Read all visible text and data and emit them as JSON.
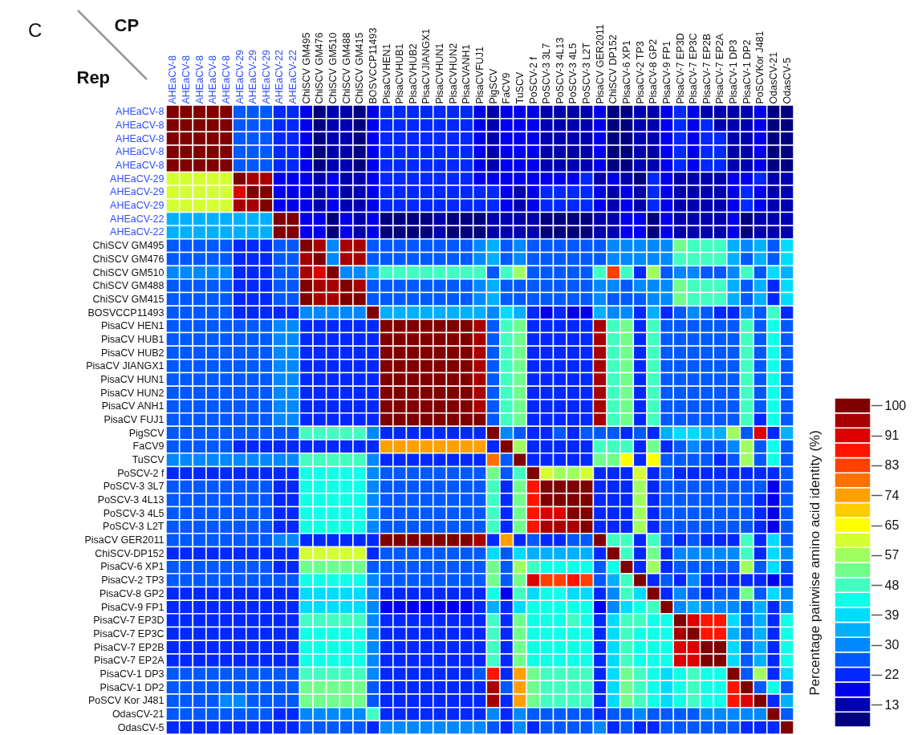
{
  "chart_data": {
    "type": "heatmap",
    "title": "C",
    "xlabel": "CP",
    "ylabel": "Rep",
    "clabel": "Percentage pairwise amino acid identity (%)",
    "categories": [
      "AHEaCV-8",
      "AHEaCV-8",
      "AHEaCV-8",
      "AHEaCV-8",
      "AHEaCV-8",
      "AHEaCV-29",
      "AHEaCV-29",
      "AHEaCV-29",
      "AHEaCV-22",
      "AHEaCV-22",
      "ChiSCV GM495",
      "ChiSCV GM476",
      "ChiSCV GM510",
      "ChiSCV GM488",
      "ChiSCV GM415",
      "BOSVCCP11493",
      "PisaCVHEN1",
      "PisaCVHUB1",
      "PisaCVHUB2",
      "PisaCVJIANGX1",
      "PisaCVHUN1",
      "PisaCVHUN2",
      "PisaCVANH1",
      "PisaCVFUJ1",
      "PigSCV",
      "FaCV9",
      "TuSCV",
      "PoSCV-2 f",
      "PoSCV-3 3L7",
      "PoSCV-3 4L13",
      "PoSCV-3 4L5",
      "PoSCV-3 L2T",
      "PisaCV GER2011",
      "ChiSCV DP152",
      "PisaCV-6 XP1",
      "PisaCV-2 TP3",
      "PisaCV-8 GP2",
      "PisaCV-9 FP1",
      "PisaCV-7 EP3D",
      "PisaCV-7 EP3C",
      "PisaCV-7 EP2B",
      "PisaCV-7 EP2A",
      "PisaCV-1 DP3",
      "PisaCV-1 DP2",
      "PoSCVKor J481",
      "OdasCV-21",
      "OdasCV-5"
    ],
    "y_categories": [
      "AHEaCV-8",
      "AHEaCV-8",
      "AHEaCV-8",
      "AHEaCV-8",
      "AHEaCV-8",
      "AHEaCV-29",
      "AHEaCV-29",
      "AHEaCV-29",
      "AHEaCV-22",
      "AHEaCV-22",
      "ChiSCV GM495",
      "ChiSCV GM476",
      "ChiSCV GM510",
      "ChiSCV GM488",
      "ChiSCV GM415",
      "BOSVCCP11493",
      "PisaCV HEN1",
      "PisaCV HUB1",
      "PisaCV HUB2",
      "PisaCV JIANGX1",
      "PisaCV HUN1",
      "PisaCV HUN2",
      "PisaCV ANH1",
      "PisaCV FUJ1",
      "PigSCV",
      "FaCV9",
      "TuSCV",
      "PoSCV-2 f",
      "PoSCV-3 3L7",
      "PoSCV-3 4L13",
      "PoSCV-3 4L5",
      "PoSCV-3 L2T",
      "PisaCV GER2011",
      "ChiSCV-DP152",
      "PisaCV-6 XP1",
      "PisaCV-2 TP3",
      "PisaCV-8 GP2",
      "PisaCV-9 FP1",
      "PisaCV-7 EP3D",
      "PisaCV-7 EP3C",
      "PisaCV-7 EP2B",
      "PisaCV-7 EP2A",
      "PisaCV-1 DP3",
      "PisaCV-1 DP2",
      "PoSCV Kor J481",
      "OdasCV-21",
      "OdasCV-5"
    ],
    "clim": [
      6.5,
      102.2
    ],
    "cticks": [
      100,
      {
        "value": 91.3,
        "label": "91"
      },
      {
        "value": 82.6,
        "label": "83"
      },
      {
        "value": 73.9,
        "label": "74"
      },
      {
        "value": 65.2,
        "label": "65"
      },
      {
        "value": 56.5,
        "label": "57"
      },
      {
        "value": 47.8,
        "label": "48"
      },
      {
        "value": 39.1,
        "label": "39"
      },
      {
        "value": 30.4,
        "label": "30"
      },
      {
        "value": 21.7,
        "label": "22"
      },
      13
    ],
    "cells": [
      [
        100,
        100,
        100,
        100,
        100,
        26,
        26,
        26,
        22,
        22,
        17,
        9,
        13,
        13,
        9,
        17,
        22,
        22,
        22,
        22,
        22,
        22,
        22,
        17,
        13,
        17,
        17,
        17,
        13,
        13,
        13,
        13,
        17,
        9,
        9,
        13,
        13,
        17,
        22,
        17,
        13,
        13,
        13,
        13,
        17,
        9,
        9
      ],
      [
        100,
        100,
        100,
        100,
        100,
        26,
        26,
        26,
        22,
        22,
        17,
        9,
        13,
        13,
        9,
        17,
        22,
        22,
        22,
        22,
        22,
        22,
        22,
        17,
        13,
        17,
        17,
        17,
        13,
        13,
        13,
        13,
        17,
        9,
        9,
        13,
        13,
        17,
        22,
        17,
        22,
        13,
        13,
        13,
        17,
        9,
        9
      ],
      [
        100,
        100,
        100,
        100,
        100,
        26,
        26,
        26,
        22,
        22,
        17,
        9,
        13,
        13,
        9,
        17,
        22,
        22,
        22,
        22,
        22,
        22,
        22,
        17,
        13,
        17,
        17,
        17,
        13,
        13,
        13,
        13,
        17,
        9,
        9,
        13,
        13,
        17,
        22,
        17,
        22,
        22,
        13,
        13,
        17,
        9,
        9
      ],
      [
        100,
        100,
        100,
        100,
        100,
        26,
        26,
        26,
        22,
        22,
        17,
        9,
        13,
        13,
        9,
        17,
        22,
        22,
        22,
        22,
        22,
        22,
        22,
        17,
        13,
        17,
        17,
        17,
        13,
        13,
        13,
        13,
        17,
        9,
        9,
        13,
        13,
        17,
        22,
        17,
        22,
        22,
        13,
        13,
        17,
        9,
        9
      ],
      [
        100,
        100,
        100,
        100,
        100,
        26,
        26,
        26,
        22,
        22,
        17,
        9,
        13,
        13,
        9,
        17,
        22,
        22,
        22,
        22,
        22,
        22,
        22,
        17,
        13,
        17,
        17,
        17,
        13,
        13,
        13,
        13,
        17,
        9,
        9,
        13,
        13,
        17,
        22,
        17,
        22,
        22,
        13,
        13,
        17,
        9,
        9
      ],
      [
        61,
        61,
        61,
        61,
        61,
        100,
        96,
        96,
        17,
        17,
        17,
        13,
        17,
        13,
        13,
        17,
        22,
        22,
        22,
        22,
        22,
        22,
        22,
        17,
        17,
        17,
        17,
        17,
        17,
        17,
        17,
        22,
        13,
        17,
        13,
        9,
        22,
        17,
        13,
        13,
        13,
        13,
        17,
        17,
        22,
        13,
        13
      ],
      [
        61,
        61,
        61,
        61,
        61,
        91,
        100,
        100,
        17,
        17,
        17,
        13,
        17,
        13,
        13,
        17,
        22,
        22,
        22,
        22,
        22,
        22,
        22,
        22,
        22,
        17,
        13,
        17,
        22,
        22,
        22,
        22,
        17,
        13,
        17,
        13,
        22,
        17,
        13,
        13,
        13,
        13,
        17,
        22,
        17,
        13,
        13
      ],
      [
        61,
        61,
        61,
        61,
        61,
        96,
        96,
        100,
        17,
        17,
        17,
        13,
        17,
        13,
        13,
        17,
        22,
        22,
        22,
        22,
        22,
        22,
        22,
        22,
        22,
        17,
        13,
        17,
        22,
        22,
        22,
        22,
        17,
        13,
        17,
        13,
        22,
        17,
        13,
        13,
        13,
        13,
        17,
        22,
        17,
        13,
        13
      ],
      [
        35,
        35,
        35,
        35,
        35,
        35,
        35,
        35,
        100,
        100,
        17,
        17,
        9,
        17,
        13,
        17,
        9,
        9,
        9,
        9,
        13,
        9,
        9,
        9,
        13,
        13,
        13,
        13,
        9,
        9,
        9,
        9,
        13,
        13,
        17,
        17,
        9,
        17,
        13,
        13,
        13,
        13,
        17,
        9,
        13,
        13,
        13
      ],
      [
        35,
        35,
        35,
        35,
        35,
        35,
        35,
        35,
        100,
        100,
        17,
        17,
        9,
        17,
        13,
        17,
        9,
        9,
        9,
        9,
        13,
        9,
        9,
        9,
        13,
        13,
        13,
        13,
        9,
        9,
        9,
        9,
        13,
        13,
        17,
        17,
        9,
        17,
        13,
        13,
        13,
        13,
        17,
        9,
        13,
        13,
        13
      ],
      [
        26,
        26,
        26,
        26,
        26,
        22,
        22,
        22,
        26,
        26,
        100,
        96,
        30,
        96,
        96,
        26,
        26,
        26,
        26,
        26,
        26,
        26,
        26,
        30,
        35,
        26,
        30,
        26,
        26,
        26,
        26,
        26,
        26,
        30,
        30,
        30,
        30,
        30,
        52,
        48,
        48,
        48,
        35,
        30,
        35,
        26,
        39
      ],
      [
        26,
        26,
        26,
        26,
        26,
        22,
        22,
        22,
        26,
        26,
        96,
        100,
        30,
        96,
        96,
        26,
        26,
        26,
        26,
        26,
        26,
        26,
        26,
        30,
        35,
        26,
        30,
        26,
        26,
        26,
        26,
        26,
        26,
        30,
        30,
        30,
        30,
        30,
        48,
        48,
        48,
        48,
        35,
        26,
        35,
        26,
        39
      ],
      [
        30,
        30,
        30,
        30,
        30,
        22,
        22,
        22,
        26,
        26,
        96,
        91,
        100,
        30,
        30,
        35,
        48,
        48,
        48,
        48,
        48,
        48,
        48,
        48,
        26,
        48,
        57,
        26,
        26,
        26,
        26,
        26,
        48,
        83,
        48,
        22,
        57,
        26,
        30,
        30,
        26,
        26,
        30,
        48,
        26,
        39,
        35
      ],
      [
        26,
        26,
        26,
        26,
        26,
        22,
        22,
        22,
        26,
        26,
        100,
        96,
        96,
        100,
        96,
        26,
        26,
        26,
        26,
        26,
        26,
        26,
        26,
        30,
        35,
        26,
        26,
        26,
        26,
        26,
        26,
        26,
        30,
        30,
        26,
        30,
        30,
        30,
        52,
        48,
        48,
        48,
        35,
        26,
        35,
        22,
        39
      ],
      [
        26,
        26,
        26,
        26,
        26,
        22,
        22,
        22,
        26,
        26,
        100,
        96,
        96,
        100,
        100,
        26,
        26,
        26,
        26,
        26,
        26,
        26,
        26,
        30,
        35,
        26,
        26,
        26,
        26,
        26,
        26,
        26,
        30,
        26,
        26,
        26,
        30,
        30,
        52,
        48,
        48,
        48,
        35,
        26,
        35,
        22,
        39
      ],
      [
        26,
        26,
        26,
        26,
        26,
        22,
        22,
        22,
        22,
        22,
        30,
        30,
        30,
        30,
        30,
        100,
        35,
        35,
        35,
        35,
        35,
        35,
        35,
        35,
        30,
        39,
        35,
        22,
        17,
        22,
        17,
        17,
        35,
        30,
        30,
        22,
        35,
        22,
        26,
        30,
        26,
        22,
        22,
        30,
        26,
        48,
        22
      ],
      [
        26,
        26,
        26,
        26,
        26,
        26,
        26,
        26,
        30,
        30,
        22,
        22,
        22,
        22,
        22,
        22,
        100,
        100,
        100,
        100,
        100,
        100,
        100,
        96,
        26,
        48,
        52,
        22,
        22,
        22,
        22,
        22,
        96,
        48,
        52,
        22,
        48,
        26,
        26,
        26,
        26,
        26,
        26,
        48,
        26,
        43,
        26
      ],
      [
        26,
        26,
        26,
        26,
        26,
        26,
        26,
        26,
        30,
        30,
        22,
        22,
        22,
        22,
        22,
        22,
        100,
        100,
        100,
        100,
        100,
        100,
        100,
        96,
        26,
        48,
        52,
        22,
        22,
        22,
        22,
        22,
        96,
        48,
        52,
        22,
        48,
        26,
        26,
        26,
        26,
        26,
        26,
        48,
        26,
        43,
        26
      ],
      [
        26,
        26,
        26,
        26,
        26,
        26,
        26,
        26,
        30,
        30,
        22,
        22,
        22,
        22,
        22,
        22,
        100,
        100,
        100,
        100,
        100,
        100,
        100,
        96,
        26,
        48,
        52,
        22,
        22,
        22,
        22,
        22,
        96,
        48,
        52,
        22,
        48,
        26,
        26,
        26,
        26,
        26,
        26,
        48,
        26,
        43,
        26
      ],
      [
        26,
        26,
        26,
        26,
        26,
        26,
        26,
        26,
        30,
        30,
        22,
        22,
        22,
        22,
        22,
        22,
        100,
        100,
        100,
        100,
        100,
        100,
        100,
        96,
        26,
        48,
        52,
        22,
        22,
        22,
        22,
        22,
        96,
        48,
        52,
        22,
        48,
        26,
        26,
        26,
        26,
        26,
        26,
        48,
        26,
        43,
        26
      ],
      [
        26,
        26,
        26,
        26,
        26,
        26,
        26,
        26,
        30,
        30,
        22,
        22,
        22,
        22,
        22,
        22,
        100,
        100,
        100,
        100,
        100,
        100,
        100,
        96,
        26,
        48,
        52,
        22,
        22,
        22,
        22,
        22,
        96,
        48,
        52,
        22,
        48,
        26,
        26,
        26,
        26,
        26,
        26,
        48,
        26,
        43,
        26
      ],
      [
        26,
        26,
        26,
        26,
        26,
        26,
        26,
        26,
        30,
        30,
        22,
        22,
        22,
        22,
        22,
        22,
        100,
        100,
        100,
        100,
        100,
        100,
        100,
        96,
        26,
        48,
        52,
        22,
        22,
        22,
        22,
        22,
        96,
        48,
        52,
        22,
        48,
        26,
        26,
        26,
        26,
        26,
        26,
        48,
        26,
        43,
        26
      ],
      [
        26,
        26,
        26,
        26,
        26,
        26,
        26,
        26,
        30,
        30,
        22,
        22,
        22,
        22,
        22,
        22,
        100,
        100,
        100,
        100,
        100,
        100,
        100,
        96,
        26,
        48,
        52,
        22,
        22,
        22,
        22,
        22,
        96,
        48,
        52,
        22,
        48,
        26,
        26,
        26,
        26,
        26,
        26,
        48,
        26,
        43,
        26
      ],
      [
        26,
        26,
        26,
        26,
        26,
        26,
        26,
        26,
        30,
        30,
        22,
        22,
        22,
        22,
        22,
        22,
        100,
        100,
        100,
        100,
        100,
        100,
        100,
        100,
        26,
        48,
        52,
        22,
        22,
        22,
        22,
        22,
        96,
        48,
        52,
        22,
        48,
        26,
        26,
        26,
        26,
        26,
        26,
        48,
        22,
        43,
        26
      ],
      [
        26,
        26,
        26,
        26,
        26,
        26,
        26,
        26,
        26,
        26,
        48,
        48,
        48,
        48,
        48,
        30,
        22,
        22,
        22,
        22,
        22,
        22,
        22,
        22,
        100,
        30,
        26,
        22,
        22,
        26,
        22,
        26,
        26,
        26,
        22,
        26,
        22,
        35,
        39,
        39,
        35,
        35,
        57,
        26,
        91,
        22,
        35
      ],
      [
        26,
        26,
        26,
        26,
        26,
        22,
        22,
        22,
        22,
        22,
        22,
        22,
        22,
        22,
        22,
        22,
        74,
        74,
        74,
        74,
        74,
        74,
        74,
        74,
        22,
        100,
        57,
        22,
        22,
        22,
        22,
        22,
        48,
        48,
        48,
        22,
        52,
        22,
        26,
        30,
        26,
        26,
        30,
        57,
        26,
        43,
        26
      ],
      [
        30,
        30,
        30,
        30,
        30,
        30,
        30,
        30,
        30,
        30,
        48,
        48,
        48,
        48,
        48,
        30,
        22,
        22,
        22,
        22,
        22,
        22,
        22,
        22,
        78,
        26,
        100,
        22,
        22,
        22,
        22,
        22,
        52,
        52,
        65,
        22,
        65,
        26,
        26,
        26,
        26,
        22,
        26,
        57,
        26,
        43,
        26
      ],
      [
        22,
        22,
        22,
        22,
        22,
        22,
        22,
        22,
        22,
        22,
        43,
        43,
        43,
        43,
        43,
        30,
        26,
        26,
        26,
        26,
        26,
        26,
        26,
        26,
        52,
        26,
        48,
        100,
        61,
        57,
        57,
        61,
        22,
        22,
        22,
        61,
        22,
        26,
        22,
        22,
        22,
        22,
        22,
        22,
        22,
        22,
        26
      ],
      [
        26,
        26,
        26,
        26,
        26,
        26,
        26,
        26,
        22,
        22,
        43,
        43,
        43,
        43,
        43,
        30,
        26,
        26,
        26,
        26,
        26,
        26,
        26,
        26,
        48,
        22,
        52,
        87,
        100,
        100,
        100,
        100,
        22,
        22,
        22,
        57,
        22,
        26,
        26,
        26,
        26,
        26,
        26,
        26,
        26,
        17,
        26
      ],
      [
        26,
        26,
        26,
        26,
        26,
        26,
        26,
        26,
        22,
        22,
        43,
        43,
        43,
        43,
        43,
        30,
        26,
        26,
        26,
        26,
        26,
        26,
        26,
        26,
        48,
        22,
        52,
        87,
        100,
        100,
        100,
        100,
        22,
        22,
        22,
        57,
        22,
        26,
        26,
        26,
        26,
        26,
        26,
        26,
        22,
        17,
        26
      ],
      [
        26,
        26,
        26,
        26,
        26,
        26,
        26,
        26,
        22,
        22,
        43,
        43,
        43,
        43,
        43,
        30,
        26,
        26,
        26,
        26,
        26,
        26,
        26,
        26,
        48,
        22,
        52,
        87,
        91,
        91,
        100,
        100,
        22,
        22,
        22,
        57,
        22,
        26,
        26,
        26,
        26,
        26,
        26,
        26,
        22,
        17,
        26
      ],
      [
        26,
        26,
        26,
        26,
        26,
        26,
        26,
        26,
        22,
        22,
        43,
        43,
        43,
        43,
        43,
        30,
        26,
        26,
        26,
        26,
        26,
        26,
        26,
        26,
        48,
        22,
        52,
        87,
        96,
        96,
        96,
        100,
        22,
        22,
        22,
        57,
        22,
        26,
        26,
        26,
        26,
        26,
        26,
        26,
        22,
        17,
        26
      ],
      [
        26,
        26,
        26,
        26,
        26,
        26,
        26,
        26,
        30,
        30,
        22,
        22,
        22,
        22,
        22,
        22,
        100,
        100,
        100,
        100,
        100,
        100,
        100,
        96,
        22,
        74,
        22,
        26,
        22,
        22,
        26,
        26,
        100,
        48,
        48,
        22,
        48,
        26,
        22,
        26,
        22,
        22,
        22,
        48,
        22,
        39,
        26
      ],
      [
        22,
        22,
        22,
        22,
        22,
        22,
        22,
        22,
        22,
        22,
        61,
        61,
        61,
        61,
        61,
        22,
        26,
        26,
        26,
        26,
        26,
        26,
        26,
        26,
        39,
        26,
        39,
        35,
        35,
        35,
        35,
        35,
        22,
        100,
        48,
        22,
        52,
        22,
        30,
        30,
        30,
        30,
        30,
        48,
        22,
        39,
        30
      ],
      [
        26,
        26,
        26,
        26,
        26,
        26,
        26,
        26,
        22,
        22,
        52,
        52,
        52,
        52,
        52,
        26,
        26,
        26,
        26,
        26,
        26,
        26,
        26,
        26,
        52,
        26,
        57,
        48,
        43,
        43,
        43,
        43,
        26,
        43,
        100,
        22,
        57,
        22,
        26,
        26,
        26,
        26,
        26,
        57,
        26,
        39,
        26
      ],
      [
        26,
        26,
        26,
        26,
        26,
        26,
        26,
        26,
        26,
        26,
        43,
        43,
        43,
        43,
        43,
        30,
        26,
        26,
        26,
        26,
        26,
        26,
        26,
        26,
        52,
        26,
        52,
        91,
        83,
        83,
        87,
        83,
        26,
        35,
        48,
        100,
        22,
        26,
        22,
        30,
        22,
        22,
        22,
        22,
        22,
        17,
        22
      ],
      [
        22,
        22,
        22,
        22,
        22,
        22,
        22,
        22,
        22,
        22,
        39,
        39,
        39,
        39,
        39,
        30,
        22,
        22,
        22,
        22,
        22,
        22,
        22,
        22,
        43,
        17,
        48,
        39,
        43,
        43,
        39,
        39,
        22,
        30,
        48,
        39,
        100,
        22,
        30,
        26,
        22,
        26,
        26,
        52,
        26,
        39,
        30
      ],
      [
        22,
        22,
        22,
        22,
        22,
        22,
        22,
        22,
        22,
        22,
        39,
        39,
        39,
        39,
        39,
        30,
        17,
        17,
        17,
        17,
        17,
        17,
        17,
        22,
        35,
        22,
        39,
        43,
        43,
        43,
        43,
        43,
        17,
        30,
        39,
        43,
        48,
        100,
        30,
        35,
        30,
        30,
        30,
        26,
        35,
        22,
        30
      ],
      [
        22,
        22,
        22,
        22,
        22,
        22,
        22,
        22,
        22,
        22,
        48,
        48,
        48,
        48,
        48,
        30,
        22,
        22,
        22,
        22,
        22,
        22,
        22,
        22,
        48,
        22,
        52,
        43,
        43,
        43,
        48,
        43,
        22,
        39,
        48,
        48,
        43,
        43,
        100,
        91,
        87,
        87,
        39,
        26,
        35,
        22,
        43
      ],
      [
        22,
        22,
        22,
        22,
        22,
        22,
        22,
        22,
        22,
        22,
        43,
        43,
        43,
        43,
        43,
        30,
        22,
        22,
        22,
        22,
        22,
        22,
        22,
        22,
        48,
        22,
        52,
        43,
        43,
        43,
        43,
        43,
        22,
        39,
        48,
        43,
        43,
        43,
        96,
        100,
        87,
        87,
        35,
        26,
        35,
        22,
        43
      ],
      [
        22,
        22,
        22,
        22,
        22,
        22,
        22,
        22,
        22,
        22,
        43,
        43,
        43,
        43,
        43,
        30,
        22,
        22,
        22,
        22,
        22,
        22,
        22,
        22,
        48,
        22,
        52,
        43,
        43,
        43,
        43,
        43,
        22,
        39,
        48,
        43,
        43,
        43,
        91,
        91,
        100,
        100,
        39,
        26,
        35,
        22,
        43
      ],
      [
        22,
        22,
        22,
        22,
        22,
        22,
        22,
        22,
        22,
        22,
        43,
        43,
        43,
        43,
        43,
        30,
        22,
        22,
        22,
        22,
        22,
        22,
        22,
        22,
        48,
        22,
        52,
        43,
        43,
        43,
        43,
        43,
        22,
        39,
        48,
        43,
        43,
        43,
        91,
        91,
        100,
        100,
        39,
        26,
        35,
        22,
        43
      ],
      [
        26,
        26,
        26,
        26,
        26,
        26,
        26,
        26,
        26,
        26,
        48,
        48,
        48,
        48,
        48,
        30,
        22,
        22,
        22,
        22,
        22,
        22,
        22,
        26,
        87,
        22,
        74,
        52,
        48,
        48,
        48,
        48,
        22,
        39,
        52,
        48,
        43,
        39,
        43,
        48,
        43,
        43,
        100,
        26,
        57,
        22,
        39
      ],
      [
        26,
        26,
        26,
        26,
        26,
        26,
        26,
        26,
        26,
        26,
        52,
        52,
        52,
        52,
        52,
        26,
        22,
        22,
        22,
        22,
        22,
        22,
        22,
        22,
        96,
        26,
        74,
        52,
        48,
        48,
        48,
        48,
        22,
        39,
        52,
        48,
        43,
        39,
        43,
        48,
        43,
        43,
        87,
        100,
        26,
        43,
        26
      ],
      [
        26,
        26,
        26,
        26,
        30,
        30,
        26,
        26,
        26,
        26,
        52,
        52,
        52,
        52,
        52,
        26,
        22,
        22,
        22,
        22,
        22,
        22,
        22,
        22,
        96,
        22,
        74,
        52,
        48,
        48,
        48,
        48,
        22,
        39,
        52,
        48,
        43,
        39,
        43,
        48,
        43,
        43,
        87,
        91,
        100,
        22,
        35
      ],
      [
        26,
        26,
        26,
        26,
        26,
        26,
        26,
        26,
        22,
        22,
        30,
        30,
        30,
        30,
        30,
        48,
        22,
        22,
        22,
        22,
        22,
        22,
        22,
        22,
        30,
        22,
        30,
        26,
        26,
        26,
        26,
        26,
        22,
        26,
        26,
        30,
        26,
        26,
        26,
        26,
        30,
        30,
        30,
        30,
        30,
        100,
        26
      ],
      [
        22,
        22,
        22,
        22,
        22,
        22,
        22,
        22,
        22,
        22,
        26,
        26,
        26,
        26,
        26,
        22,
        30,
        30,
        30,
        30,
        30,
        30,
        30,
        30,
        26,
        22,
        30,
        22,
        26,
        26,
        26,
        26,
        30,
        22,
        26,
        22,
        22,
        26,
        26,
        26,
        26,
        26,
        26,
        22,
        22,
        22,
        100
      ]
    ]
  }
}
